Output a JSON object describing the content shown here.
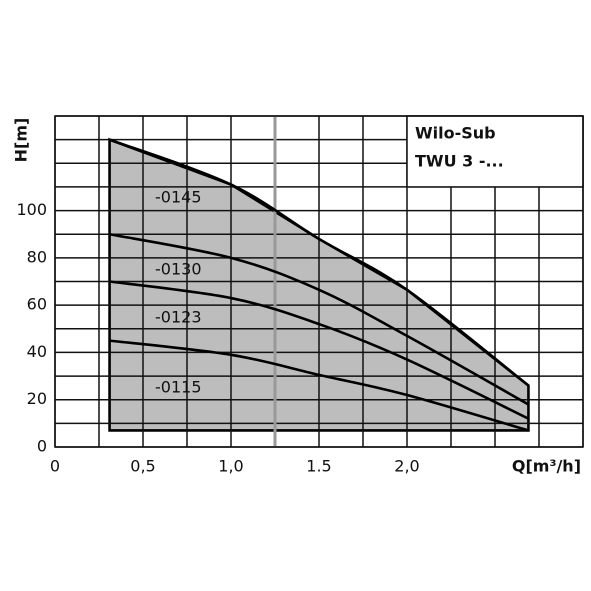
{
  "chart_data": {
    "type": "line",
    "title_lines": [
      "Wilo-Sub",
      "TWU 3 -..."
    ],
    "y_label": "H[m]",
    "x_label": "Q[m³/h]",
    "xlim": [
      0,
      3
    ],
    "ylim": [
      0,
      140
    ],
    "xticks": [
      0,
      {
        "value": 0.5,
        "label": "0,5"
      },
      {
        "value": 1,
        "label": "1,0"
      },
      {
        "value": 1.5,
        "label": "1.5"
      },
      {
        "value": 2,
        "label": "2,0"
      }
    ],
    "yticks": [
      0,
      20,
      40,
      60,
      80,
      100
    ],
    "xgrid": [
      0,
      0.25,
      0.5,
      0.75,
      1,
      1.25,
      1.5,
      1.75,
      2,
      2.25,
      2.5,
      2.75,
      3
    ],
    "ygrid": [
      0,
      10,
      20,
      30,
      40,
      50,
      60,
      70,
      80,
      90,
      100,
      110,
      120,
      130,
      140
    ],
    "highlight_x": 1.25,
    "region_floor": 7,
    "region_color": "#bdbdbd",
    "x": [
      0.31,
      1.0,
      1.5,
      2.0,
      2.69
    ],
    "series": [
      {
        "name": "-0145",
        "color": "#000000",
        "values": [
          130,
          111,
          88,
          66.5,
          26
        ]
      },
      {
        "name": "-0130",
        "color": "#000000",
        "values": [
          90,
          80,
          66.5,
          47,
          18
        ]
      },
      {
        "name": "-0123",
        "color": "#000000",
        "values": [
          70,
          63,
          52,
          37,
          12
        ]
      },
      {
        "name": "-0115",
        "color": "#000000",
        "values": [
          45,
          39,
          30.5,
          22,
          7
        ]
      }
    ]
  }
}
